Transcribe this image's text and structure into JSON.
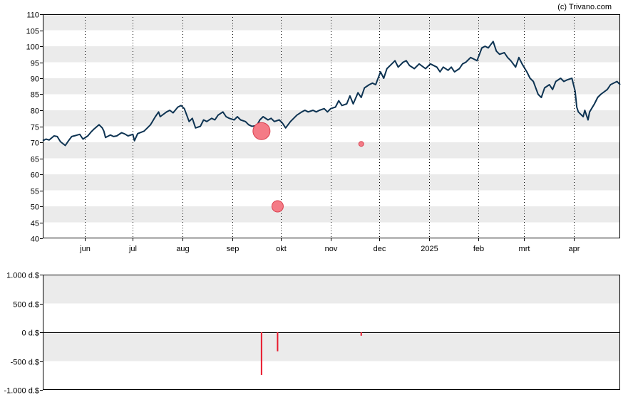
{
  "credit": "(c) Trivano.com",
  "colors": {
    "line": "#0d3352",
    "band": "#ebebeb",
    "bubble_fill": "#f47b86",
    "bubble_stroke": "#d9404f",
    "bar": "#e8192c"
  },
  "chart_data": [
    {
      "type": "line",
      "title": "",
      "xlabel": "",
      "ylabel": "",
      "ylim": [
        40,
        110
      ],
      "y_ticks": [
        40,
        45,
        50,
        55,
        60,
        65,
        70,
        75,
        80,
        85,
        90,
        95,
        100,
        105,
        110
      ],
      "x_range": [
        "2024-05-06",
        "2025-04-30"
      ],
      "x_ticks": [
        {
          "label": "jun",
          "date": "2024-06-01"
        },
        {
          "label": "jul",
          "date": "2024-07-01"
        },
        {
          "label": "aug",
          "date": "2024-08-01"
        },
        {
          "label": "sep",
          "date": "2024-09-01"
        },
        {
          "label": "okt",
          "date": "2024-10-01"
        },
        {
          "label": "nov",
          "date": "2024-11-01"
        },
        {
          "label": "dec",
          "date": "2024-12-01"
        },
        {
          "label": "2025",
          "date": "2025-01-01"
        },
        {
          "label": "feb",
          "date": "2025-02-01"
        },
        {
          "label": "mrt",
          "date": "2025-03-01"
        },
        {
          "label": "apr",
          "date": "2025-04-01"
        }
      ],
      "grid": "vertical dotted lines at month ticks, alternating horizontal bands",
      "series": [
        {
          "points": [
            [
              "2024-05-06",
              70.5
            ],
            [
              "2024-05-08",
              71.0
            ],
            [
              "2024-05-10",
              70.7
            ],
            [
              "2024-05-13",
              72.0
            ],
            [
              "2024-05-15",
              71.8
            ],
            [
              "2024-05-17",
              70.2
            ],
            [
              "2024-05-20",
              69.0
            ],
            [
              "2024-05-22",
              70.5
            ],
            [
              "2024-05-24",
              71.8
            ],
            [
              "2024-05-27",
              72.2
            ],
            [
              "2024-05-29",
              72.5
            ],
            [
              "2024-05-31",
              71.0
            ],
            [
              "2024-06-03",
              72.0
            ],
            [
              "2024-06-05",
              73.2
            ],
            [
              "2024-06-07",
              74.2
            ],
            [
              "2024-06-10",
              75.5
            ],
            [
              "2024-06-12",
              74.5
            ],
            [
              "2024-06-13",
              73.5
            ],
            [
              "2024-06-14",
              71.5
            ],
            [
              "2024-06-17",
              72.3
            ],
            [
              "2024-06-19",
              71.8
            ],
            [
              "2024-06-21",
              72.0
            ],
            [
              "2024-06-24",
              73.0
            ],
            [
              "2024-06-26",
              72.6
            ],
            [
              "2024-06-28",
              72.0
            ],
            [
              "2024-07-01",
              72.5
            ],
            [
              "2024-07-02",
              70.5
            ],
            [
              "2024-07-04",
              72.7
            ],
            [
              "2024-07-08",
              73.5
            ],
            [
              "2024-07-10",
              74.5
            ],
            [
              "2024-07-12",
              75.5
            ],
            [
              "2024-07-15",
              78.0
            ],
            [
              "2024-07-17",
              79.5
            ],
            [
              "2024-07-18",
              78.0
            ],
            [
              "2024-07-22",
              79.5
            ],
            [
              "2024-07-24",
              80.0
            ],
            [
              "2024-07-26",
              79.2
            ],
            [
              "2024-07-29",
              81.0
            ],
            [
              "2024-07-31",
              81.5
            ],
            [
              "2024-08-02",
              80.5
            ],
            [
              "2024-08-05",
              76.5
            ],
            [
              "2024-08-07",
              77.5
            ],
            [
              "2024-08-09",
              74.5
            ],
            [
              "2024-08-12",
              75.0
            ],
            [
              "2024-08-14",
              77.0
            ],
            [
              "2024-08-16",
              76.5
            ],
            [
              "2024-08-19",
              77.5
            ],
            [
              "2024-08-21",
              77.0
            ],
            [
              "2024-08-23",
              78.5
            ],
            [
              "2024-08-26",
              79.5
            ],
            [
              "2024-08-28",
              78.0
            ],
            [
              "2024-08-30",
              77.5
            ],
            [
              "2024-09-02",
              77.0
            ],
            [
              "2024-09-04",
              78.0
            ],
            [
              "2024-09-06",
              77.0
            ],
            [
              "2024-09-09",
              76.5
            ],
            [
              "2024-09-11",
              75.5
            ],
            [
              "2024-09-13",
              75.0
            ],
            [
              "2024-09-16",
              75.2
            ],
            [
              "2024-09-18",
              77.0
            ],
            [
              "2024-09-20",
              78.0
            ],
            [
              "2024-09-23",
              77.0
            ],
            [
              "2024-09-25",
              77.5
            ],
            [
              "2024-09-27",
              76.5
            ],
            [
              "2024-09-30",
              77.0
            ],
            [
              "2024-10-02",
              76.0
            ],
            [
              "2024-10-04",
              74.5
            ],
            [
              "2024-10-07",
              76.5
            ],
            [
              "2024-10-09",
              77.5
            ],
            [
              "2024-10-11",
              78.5
            ],
            [
              "2024-10-14",
              79.5
            ],
            [
              "2024-10-16",
              80.0
            ],
            [
              "2024-10-18",
              79.5
            ],
            [
              "2024-10-21",
              80.0
            ],
            [
              "2024-10-23",
              79.5
            ],
            [
              "2024-10-25",
              80.0
            ],
            [
              "2024-10-28",
              80.5
            ],
            [
              "2024-10-30",
              79.5
            ],
            [
              "2024-11-01",
              80.5
            ],
            [
              "2024-11-04",
              81.0
            ],
            [
              "2024-11-06",
              83.0
            ],
            [
              "2024-11-08",
              81.5
            ],
            [
              "2024-11-11",
              82.0
            ],
            [
              "2024-11-13",
              84.5
            ],
            [
              "2024-11-15",
              82.0
            ],
            [
              "2024-11-18",
              85.5
            ],
            [
              "2024-11-20",
              84.0
            ],
            [
              "2024-11-22",
              87.0
            ],
            [
              "2024-11-25",
              88.0
            ],
            [
              "2024-11-27",
              88.5
            ],
            [
              "2024-11-29",
              88.0
            ],
            [
              "2024-12-02",
              92.0
            ],
            [
              "2024-12-04",
              90.0
            ],
            [
              "2024-12-06",
              93.0
            ],
            [
              "2024-12-09",
              94.5
            ],
            [
              "2024-12-11",
              95.5
            ],
            [
              "2024-12-13",
              93.5
            ],
            [
              "2024-12-16",
              95.0
            ],
            [
              "2024-12-18",
              95.5
            ],
            [
              "2024-12-20",
              94.0
            ],
            [
              "2024-12-23",
              93.0
            ],
            [
              "2024-12-26",
              94.5
            ],
            [
              "2024-12-30",
              93.0
            ],
            [
              "2025-01-02",
              94.5
            ],
            [
              "2025-01-06",
              93.5
            ],
            [
              "2025-01-08",
              92.0
            ],
            [
              "2025-01-10",
              93.5
            ],
            [
              "2025-01-13",
              92.5
            ],
            [
              "2025-01-15",
              93.5
            ],
            [
              "2025-01-17",
              92.0
            ],
            [
              "2025-01-20",
              93.0
            ],
            [
              "2025-01-22",
              94.5
            ],
            [
              "2025-01-24",
              95.0
            ],
            [
              "2025-01-27",
              96.5
            ],
            [
              "2025-01-29",
              96.0
            ],
            [
              "2025-01-31",
              95.5
            ],
            [
              "2025-02-03",
              99.5
            ],
            [
              "2025-02-05",
              100.0
            ],
            [
              "2025-02-07",
              99.5
            ],
            [
              "2025-02-10",
              101.5
            ],
            [
              "2025-02-12",
              98.5
            ],
            [
              "2025-02-14",
              97.5
            ],
            [
              "2025-02-17",
              98.0
            ],
            [
              "2025-02-19",
              96.5
            ],
            [
              "2025-02-21",
              95.5
            ],
            [
              "2025-02-24",
              93.5
            ],
            [
              "2025-02-26",
              96.5
            ],
            [
              "2025-02-28",
              94.5
            ],
            [
              "2025-03-03",
              92.0
            ],
            [
              "2025-03-05",
              90.0
            ],
            [
              "2025-03-07",
              89.0
            ],
            [
              "2025-03-10",
              85.0
            ],
            [
              "2025-03-12",
              84.0
            ],
            [
              "2025-03-14",
              87.0
            ],
            [
              "2025-03-17",
              88.0
            ],
            [
              "2025-03-19",
              86.5
            ],
            [
              "2025-03-21",
              89.0
            ],
            [
              "2025-03-24",
              90.0
            ],
            [
              "2025-03-26",
              89.0
            ],
            [
              "2025-03-28",
              89.5
            ],
            [
              "2025-03-31",
              90.0
            ],
            [
              "2025-04-02",
              86.0
            ],
            [
              "2025-04-03",
              81.0
            ],
            [
              "2025-04-04",
              79.5
            ],
            [
              "2025-04-07",
              78.0
            ],
            [
              "2025-04-08",
              80.0
            ],
            [
              "2025-04-10",
              77.0
            ],
            [
              "2025-04-11",
              79.5
            ],
            [
              "2025-04-14",
              82.0
            ],
            [
              "2025-04-16",
              84.0
            ],
            [
              "2025-04-18",
              85.0
            ],
            [
              "2025-04-22",
              86.5
            ],
            [
              "2025-04-24",
              88.0
            ],
            [
              "2025-04-28",
              89.0
            ],
            [
              "2025-04-30",
              88.0
            ]
          ]
        }
      ],
      "bubbles": [
        {
          "date": "2024-09-19",
          "value": 73.5,
          "magnitude": 740
        },
        {
          "date": "2024-09-29",
          "value": 50.0,
          "magnitude": 330
        },
        {
          "date": "2024-11-20",
          "value": 69.5,
          "magnitude": 60
        }
      ]
    },
    {
      "type": "bar",
      "title": "",
      "xlabel": "",
      "ylabel": "",
      "ylim": [
        -1000,
        1000
      ],
      "y_ticks": [
        {
          "value": 1000,
          "label": "1.000 d.$"
        },
        {
          "value": 500,
          "label": "500 d.$"
        },
        {
          "value": 0,
          "label": "0 d.$"
        },
        {
          "value": -500,
          "label": "-500 d.$"
        },
        {
          "value": -1000,
          "label": "-1.000 d.$"
        }
      ],
      "bars": [
        {
          "date": "2024-09-19",
          "value": -740
        },
        {
          "date": "2024-09-29",
          "value": -330
        },
        {
          "date": "2024-11-20",
          "value": -60
        }
      ]
    }
  ]
}
